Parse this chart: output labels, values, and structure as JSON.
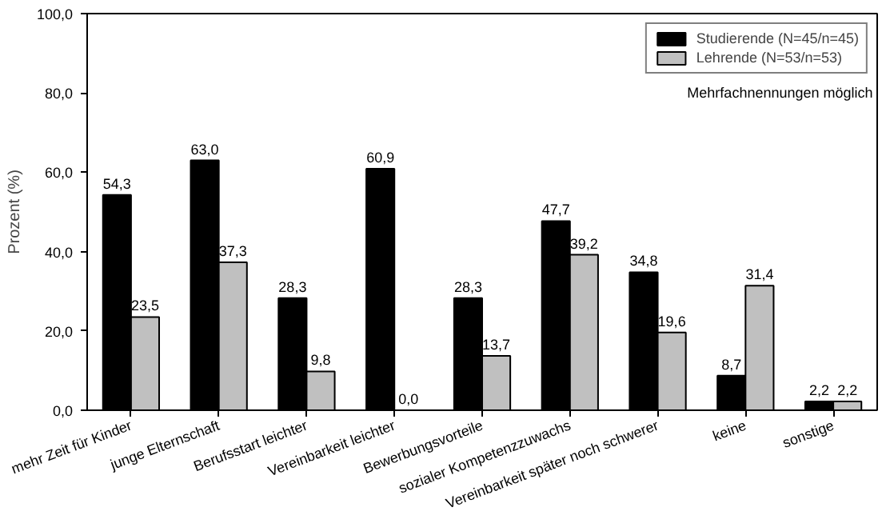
{
  "chart_data": {
    "type": "bar",
    "ylabel": "Prozent (%)",
    "categories": [
      "mehr Zeit für Kinder",
      "junge Elternschaft",
      "Berufsstart leichter",
      "Vereinbarkeit leichter",
      "Bewerbungsvorteile",
      "sozialer Kompetenzzuwachs",
      "Vereinbarkeit später noch schwerer",
      "keine",
      "sonstige"
    ],
    "series": [
      {
        "name": "Studierende (N=45/n=45)",
        "color": "#000000",
        "values": [
          54.3,
          63.0,
          28.3,
          60.9,
          28.3,
          47.7,
          34.8,
          8.7,
          2.2
        ],
        "value_labels": [
          "54,3",
          "63,0",
          "28,3",
          "60,9",
          "28,3",
          "47,7",
          "34,8",
          "8,7",
          "2,2"
        ]
      },
      {
        "name": "Lehrende (N=53/n=53)",
        "color": "#c0c0c0",
        "values": [
          23.5,
          37.3,
          9.8,
          0.0,
          13.7,
          39.2,
          19.6,
          31.4,
          2.2
        ],
        "value_labels": [
          "23,5",
          "37,3",
          "9,8",
          "0,0",
          "13,7",
          "39,2",
          "19,6",
          "31,4",
          "2,2"
        ]
      }
    ],
    "ylim": [
      0,
      100
    ],
    "yticks": [
      {
        "value": 0,
        "label": "0,0"
      },
      {
        "value": 20,
        "label": "20,0"
      },
      {
        "value": 40,
        "label": "40,0"
      },
      {
        "value": 60,
        "label": "60,0"
      },
      {
        "value": 80,
        "label": "80,0"
      },
      {
        "value": 100,
        "label": "100,0"
      }
    ],
    "grid": false,
    "legend": "top right",
    "annotations": [
      "Mehrfachnennungen möglich"
    ]
  }
}
